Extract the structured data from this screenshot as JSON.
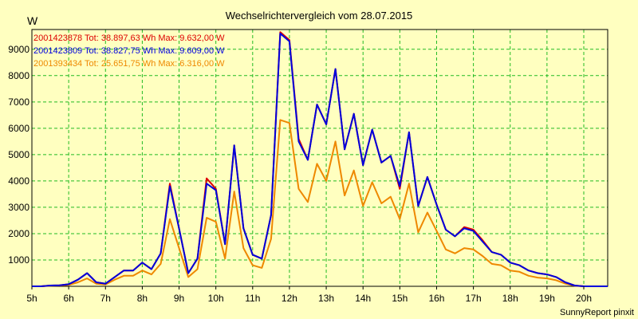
{
  "chart_data": {
    "type": "line",
    "title": "Wechselrichtervergleich vom 28.07.2015",
    "ylabel": "W",
    "xlabel": "",
    "credit": "SunnyReport pinxit",
    "grid": true,
    "legend_position": "top-left",
    "xlim": [
      5.0,
      20.65
    ],
    "ylim": [
      0,
      9750
    ],
    "x_ticks": [
      5,
      6,
      7,
      8,
      9,
      10,
      11,
      12,
      13,
      14,
      15,
      16,
      17,
      18,
      19,
      20
    ],
    "x_tick_labels": [
      "5h",
      "6h",
      "7h",
      "8h",
      "9h",
      "10h",
      "11h",
      "12h",
      "13h",
      "14h",
      "15h",
      "16h",
      "17h",
      "18h",
      "19h",
      "20h"
    ],
    "y_ticks": [
      1000,
      2000,
      3000,
      4000,
      5000,
      6000,
      7000,
      8000,
      9000
    ],
    "y_tick_labels": [
      "1000",
      "2000",
      "3000",
      "4000",
      "5000",
      "6000",
      "7000",
      "8000",
      "9000"
    ],
    "x": [
      5.0,
      5.25,
      5.5,
      5.75,
      6.0,
      6.25,
      6.5,
      6.75,
      7.0,
      7.25,
      7.5,
      7.75,
      8.0,
      8.25,
      8.5,
      8.75,
      9.0,
      9.25,
      9.5,
      9.75,
      10.0,
      10.25,
      10.5,
      10.75,
      11.0,
      11.25,
      11.5,
      11.75,
      12.0,
      12.25,
      12.5,
      12.75,
      13.0,
      13.25,
      13.5,
      13.75,
      14.0,
      14.25,
      14.5,
      14.75,
      15.0,
      15.25,
      15.5,
      15.75,
      16.0,
      16.25,
      16.5,
      16.75,
      17.0,
      17.25,
      17.5,
      17.75,
      18.0,
      18.25,
      18.5,
      18.75,
      19.0,
      19.25,
      19.5,
      19.75,
      20.0,
      20.25,
      20.5,
      20.65
    ],
    "series": [
      {
        "name": "2001423878",
        "legend": "2001423878 Tot: 38.897,63 Wh Max: 9.632,00 W",
        "color": "#dd0000",
        "values": [
          0,
          0,
          30,
          40,
          80,
          250,
          500,
          150,
          100,
          350,
          600,
          600,
          900,
          650,
          1250,
          3900,
          2200,
          500,
          1050,
          4100,
          3700,
          1600,
          5350,
          2200,
          1200,
          1050,
          2700,
          9650,
          9350,
          5600,
          4800,
          6900,
          6150,
          8250,
          5200,
          6550,
          4600,
          5950,
          4700,
          4950,
          3700,
          5850,
          3050,
          4150,
          3100,
          2150,
          1900,
          2250,
          2150,
          1750,
          1300,
          1200,
          900,
          800,
          600,
          500,
          450,
          350,
          150,
          30,
          0,
          0,
          0,
          0
        ]
      },
      {
        "name": "2001423809",
        "legend": "2001423809 Tot: 38.827,75 Wh Max: 9.609,00 W",
        "color": "#0000dd",
        "values": [
          0,
          0,
          30,
          40,
          80,
          250,
          500,
          150,
          100,
          350,
          600,
          600,
          900,
          650,
          1250,
          3800,
          2200,
          500,
          1050,
          3900,
          3650,
          1600,
          5350,
          2200,
          1200,
          1050,
          2700,
          9600,
          9300,
          5500,
          4800,
          6900,
          6150,
          8250,
          5200,
          6550,
          4600,
          5950,
          4700,
          4950,
          3800,
          5850,
          3050,
          4150,
          3100,
          2150,
          1900,
          2200,
          2100,
          1700,
          1300,
          1200,
          900,
          800,
          600,
          500,
          450,
          350,
          150,
          30,
          0,
          0,
          0,
          0
        ]
      },
      {
        "name": "2001393434",
        "legend": "2001393434 Tot: 25.651,75 Wh Max: 6.316,00 W",
        "color": "#ee8800",
        "values": [
          0,
          0,
          20,
          30,
          50,
          150,
          300,
          100,
          70,
          250,
          400,
          400,
          600,
          450,
          850,
          2550,
          1450,
          350,
          650,
          2600,
          2450,
          1050,
          3600,
          1450,
          800,
          700,
          1800,
          6316,
          6200,
          3700,
          3200,
          4650,
          4000,
          5500,
          3450,
          4400,
          3050,
          3950,
          3150,
          3400,
          2550,
          3900,
          2050,
          2800,
          2100,
          1400,
          1250,
          1450,
          1400,
          1150,
          850,
          800,
          600,
          550,
          400,
          330,
          300,
          230,
          100,
          20,
          0,
          0,
          0,
          0
        ]
      }
    ]
  }
}
